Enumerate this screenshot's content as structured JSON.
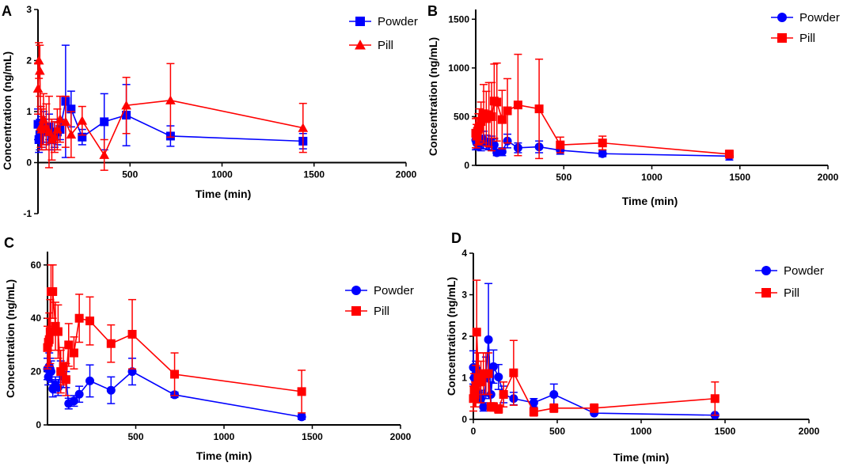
{
  "chart_data": [
    {
      "panel": "A",
      "type": "line",
      "xlabel": "Time (min)",
      "ylabel": "Concentration (ng/mL)",
      "xlim": [
        0,
        2000
      ],
      "ylim": [
        -1,
        3
      ],
      "xticks": [
        500,
        1000,
        1500,
        2000
      ],
      "yticks": [
        -1,
        0,
        1,
        2,
        3
      ],
      "legend": "top-right",
      "series": [
        {
          "name": "Powder",
          "color": "#0000ff",
          "marker": "square",
          "x": [
            0,
            5,
            10,
            15,
            20,
            30,
            45,
            60,
            75,
            90,
            105,
            120,
            150,
            180,
            240,
            360,
            480,
            720,
            1440
          ],
          "y": [
            0.75,
            0.45,
            0.55,
            0.75,
            0.6,
            0.7,
            0.6,
            0.7,
            0.45,
            0.55,
            0.6,
            0.65,
            1.2,
            1.05,
            0.5,
            0.8,
            0.93,
            0.52,
            0.42
          ],
          "err": [
            0.3,
            0.25,
            0.3,
            0.35,
            0.3,
            0.3,
            0.25,
            0.25,
            0.2,
            0.25,
            0.25,
            0.2,
            1.1,
            0.35,
            0.15,
            0.55,
            0.6,
            0.2,
            0.15
          ]
        },
        {
          "name": "Pill",
          "color": "#ff0000",
          "marker": "triangle",
          "x": [
            0,
            5,
            10,
            15,
            20,
            30,
            45,
            60,
            75,
            90,
            105,
            120,
            150,
            180,
            240,
            360,
            480,
            720,
            1440
          ],
          "y": [
            1.45,
            2.0,
            1.8,
            0.7,
            0.65,
            0.85,
            0.7,
            0.6,
            0.45,
            0.5,
            0.65,
            0.85,
            0.8,
            0.55,
            0.82,
            0.15,
            1.12,
            1.22,
            0.68
          ],
          "err": [
            0.5,
            0.35,
            0.5,
            0.4,
            0.4,
            0.5,
            0.45,
            0.7,
            0.4,
            0.3,
            0.4,
            0.45,
            0.5,
            0.45,
            0.28,
            0.3,
            0.55,
            0.72,
            0.48
          ]
        }
      ]
    },
    {
      "panel": "B",
      "type": "line",
      "xlabel": "Time (min)",
      "ylabel": "Concentration (ng/mL)",
      "xlim": [
        0,
        2000
      ],
      "ylim": [
        0,
        1600
      ],
      "xticks": [
        500,
        1000,
        1500,
        2000
      ],
      "yticks": [
        0,
        500,
        1000,
        1500
      ],
      "legend": "top-right",
      "series": [
        {
          "name": "Powder",
          "color": "#0000ff",
          "marker": "circle",
          "x": [
            0,
            5,
            10,
            15,
            20,
            30,
            45,
            60,
            75,
            90,
            105,
            120,
            150,
            180,
            240,
            360,
            480,
            720,
            1440
          ],
          "y": [
            260,
            230,
            250,
            270,
            280,
            230,
            260,
            240,
            220,
            230,
            210,
            130,
            140,
            250,
            180,
            190,
            155,
            120,
            95
          ],
          "err": [
            100,
            70,
            80,
            90,
            100,
            80,
            90,
            70,
            60,
            70,
            60,
            30,
            40,
            70,
            50,
            60,
            40,
            30,
            40
          ]
        },
        {
          "name": "Pill",
          "color": "#ff0000",
          "marker": "square",
          "x": [
            0,
            5,
            10,
            15,
            20,
            30,
            45,
            60,
            75,
            90,
            105,
            120,
            150,
            180,
            240,
            360,
            480,
            720,
            1440
          ],
          "y": [
            330,
            300,
            350,
            370,
            400,
            450,
            530,
            480,
            520,
            500,
            660,
            650,
            470,
            560,
            620,
            580,
            210,
            230,
            115
          ],
          "err": [
            150,
            120,
            140,
            160,
            180,
            200,
            300,
            280,
            330,
            350,
            380,
            400,
            300,
            330,
            520,
            510,
            80,
            70,
            40
          ]
        }
      ]
    },
    {
      "panel": "C",
      "type": "line",
      "xlabel": "Time (min)",
      "ylabel": "Concentration (ng/mL)",
      "xlim": [
        0,
        2000
      ],
      "ylim": [
        0,
        65
      ],
      "xticks": [
        500,
        1000,
        1500,
        2000
      ],
      "yticks": [
        0,
        20,
        40,
        60
      ],
      "legend": "right",
      "series": [
        {
          "name": "Powder",
          "color": "#0000ff",
          "marker": "circle",
          "x": [
            0,
            5,
            10,
            15,
            20,
            30,
            45,
            60,
            75,
            90,
            105,
            120,
            150,
            180,
            240,
            360,
            480,
            720,
            1440
          ],
          "y": [
            21,
            18,
            22,
            21,
            20,
            13.5,
            15,
            14,
            20,
            18,
            17,
            8,
            9,
            11.5,
            16.5,
            13,
            20,
            11.3,
            3
          ],
          "err": [
            4,
            3,
            5,
            4,
            4,
            3,
            3,
            3,
            4,
            4,
            3,
            2,
            2,
            3,
            6,
            5,
            5,
            1,
            1
          ]
        },
        {
          "name": "Pill",
          "color": "#ff0000",
          "marker": "square",
          "x": [
            0,
            5,
            10,
            15,
            20,
            30,
            45,
            60,
            75,
            90,
            105,
            120,
            150,
            180,
            240,
            360,
            480,
            720,
            1440
          ],
          "y": [
            29,
            31,
            32,
            35,
            50,
            50,
            37,
            35,
            20,
            22,
            17,
            30,
            27,
            40,
            39,
            30.5,
            34,
            19,
            12.5
          ],
          "err": [
            8,
            9,
            10,
            12,
            10,
            10,
            9,
            10,
            8,
            7,
            6,
            8,
            6,
            9,
            9,
            7,
            13,
            8,
            8
          ]
        }
      ]
    },
    {
      "panel": "D",
      "type": "line",
      "xlabel": "Time (min)",
      "ylabel": "Concentration (ng/mL)",
      "xlim": [
        0,
        2000
      ],
      "ylim": [
        0,
        4
      ],
      "xticks": [
        0,
        500,
        1000,
        1500,
        2000
      ],
      "yticks": [
        0,
        1,
        2,
        3,
        4
      ],
      "legend": "top-right",
      "series": [
        {
          "name": "Powder",
          "color": "#0000ff",
          "marker": "circle",
          "x": [
            0,
            5,
            10,
            15,
            20,
            30,
            45,
            60,
            75,
            90,
            105,
            120,
            150,
            180,
            240,
            360,
            480,
            720,
            1440
          ],
          "y": [
            1.25,
            1.0,
            0.8,
            1.1,
            1.2,
            0.65,
            0.5,
            0.3,
            1.0,
            1.92,
            0.6,
            1.27,
            1.02,
            0.6,
            0.5,
            0.4,
            0.6,
            0.15,
            0.1
          ],
          "err": [
            0.4,
            0.3,
            0.3,
            0.3,
            0.4,
            0.25,
            0.2,
            0.1,
            0.5,
            1.35,
            0.3,
            0.4,
            0.3,
            0.2,
            0.15,
            0.1,
            0.25,
            0.03,
            0.03
          ]
        },
        {
          "name": "Pill",
          "color": "#ff0000",
          "marker": "square",
          "x": [
            0,
            5,
            10,
            15,
            20,
            30,
            45,
            60,
            75,
            90,
            105,
            120,
            150,
            180,
            240,
            360,
            480,
            720,
            1440
          ],
          "y": [
            0.5,
            0.7,
            0.6,
            0.8,
            2.1,
            1.0,
            0.9,
            1.1,
            1.1,
            1.1,
            0.3,
            0.3,
            0.25,
            0.6,
            1.12,
            0.18,
            0.27,
            0.27,
            0.5
          ],
          "err": [
            0.3,
            0.4,
            0.3,
            0.5,
            1.25,
            0.6,
            0.5,
            0.5,
            0.5,
            0.5,
            0.1,
            0.1,
            0.1,
            0.3,
            0.78,
            0.1,
            0.1,
            0.1,
            0.4
          ]
        }
      ]
    }
  ]
}
